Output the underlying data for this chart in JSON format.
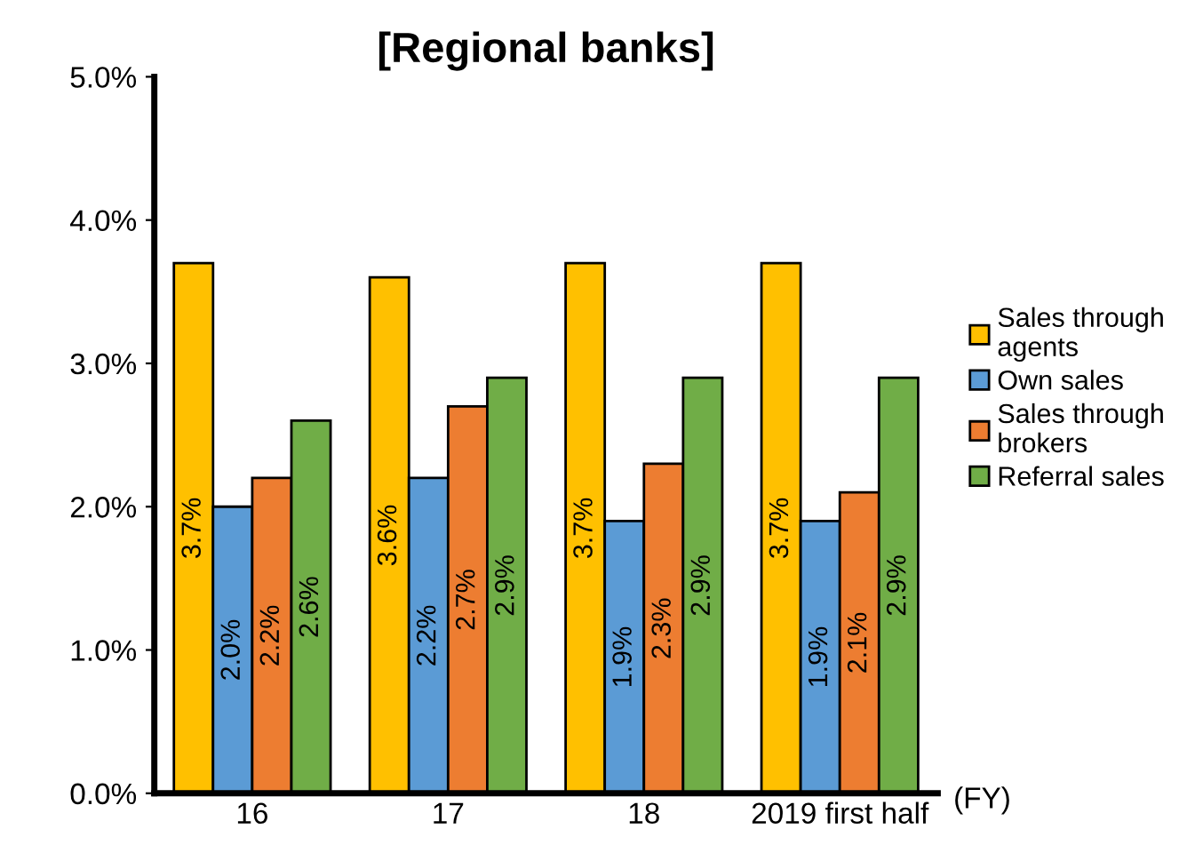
{
  "chart_data": {
    "type": "bar",
    "title": "[Regional banks]",
    "categories": [
      "16",
      "17",
      "18",
      "2019 first half"
    ],
    "series": [
      {
        "name": "Sales through agents",
        "color": "#ffc000",
        "values": [
          3.7,
          3.6,
          3.7,
          3.7
        ],
        "value_labels": [
          "3.7%",
          "3.6%",
          "3.7%",
          "3.7%"
        ]
      },
      {
        "name": "Own sales",
        "color": "#5b9bd5",
        "values": [
          2.0,
          2.2,
          1.9,
          1.9
        ],
        "value_labels": [
          "2.0%",
          "2.2%",
          "1.9%",
          "1.9%"
        ]
      },
      {
        "name": "Sales through brokers",
        "color": "#ed7d31",
        "values": [
          2.2,
          2.7,
          2.3,
          2.1
        ],
        "value_labels": [
          "2.2%",
          "2.7%",
          "2.3%",
          "2.1%"
        ]
      },
      {
        "name": "Referral sales",
        "color": "#70ad47",
        "values": [
          2.6,
          2.9,
          2.9,
          2.9
        ],
        "value_labels": [
          "2.6%",
          "2.9%",
          "2.9%",
          "2.9%"
        ]
      }
    ],
    "ylim": [
      0,
      5
    ],
    "yticks": [
      {
        "value": 0,
        "label": "0.0%"
      },
      {
        "value": 1,
        "label": "1.0%"
      },
      {
        "value": 2,
        "label": "2.0%"
      },
      {
        "value": 3,
        "label": "3.0%"
      },
      {
        "value": 4,
        "label": "4.0%"
      },
      {
        "value": 5,
        "label": "5.0%"
      }
    ],
    "annotations": [
      "(FY)"
    ],
    "legend": "right",
    "grid": false
  }
}
